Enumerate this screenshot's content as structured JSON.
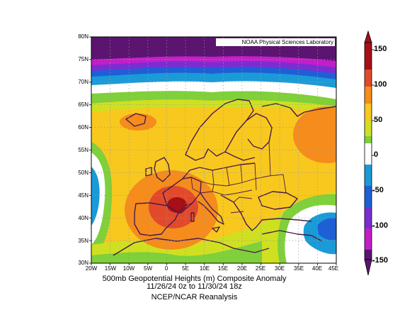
{
  "provider": "NOAA Physical Sciences Laboratory",
  "title_lines": [
    "500mb Geopotential Heights (m)     Composite Anomaly",
    "11/26/24 0z  to 11/30/24 18z"
  ],
  "source": "NCEP/NCAR Reanalysis",
  "map": {
    "lon_range": [
      -20,
      45
    ],
    "lat_range": [
      30,
      80
    ],
    "projection": "equirectangular",
    "grid": true,
    "lat_labels": [
      "80N",
      "75N",
      "70N",
      "65N",
      "60N",
      "55N",
      "50N",
      "45N",
      "40N",
      "35N",
      "30N"
    ],
    "lon_labels": [
      "20W",
      "15W",
      "10W",
      "5W",
      "0",
      "5E",
      "10E",
      "15E",
      "20E",
      "25E",
      "30E",
      "35E",
      "40E",
      "45E"
    ]
  },
  "colorbar": {
    "labels": [
      "150",
      "100",
      "50",
      "0",
      "-50",
      "-100",
      "-150"
    ],
    "levels": [
      {
        "range": "> 150",
        "color": "#a50f15"
      },
      {
        "range": "120 to 150",
        "color": "#e2492b"
      },
      {
        "range": "90 to 120",
        "color": "#f58c1c"
      },
      {
        "range": "60 to 90",
        "color": "#f8c81f"
      },
      {
        "range": "30 to 60",
        "color": "#cfe021"
      },
      {
        "range": "15 to 30",
        "color": "#7fd03a"
      },
      {
        "range": "-15 to 15",
        "color": "#ffffff"
      },
      {
        "range": "-50 to -15",
        "color": "#1a9bd7"
      },
      {
        "range": "-80 to -50",
        "color": "#1f5fd6"
      },
      {
        "range": "-110 to -80",
        "color": "#7a2ed1"
      },
      {
        "range": "-130 to -110",
        "color": "#c21ec8"
      },
      {
        "range": "< -130",
        "color": "#5b1470"
      }
    ]
  },
  "anomaly_features": [
    {
      "name": "positive-anomaly-max-southern-france",
      "lon": 2,
      "lat": 43,
      "value_m": 160
    },
    {
      "name": "positive-anomaly-russia",
      "lon": 43,
      "lat": 57,
      "value_m": 125
    },
    {
      "name": "negative-anomaly-eastern-mediterranean",
      "lon": 40,
      "lat": 38,
      "value_m": -60
    },
    {
      "name": "negative-anomaly-arctic",
      "lon": 10,
      "lat": 78,
      "value_m": -150
    },
    {
      "name": "negative-anomaly-atlantic-west",
      "lon": -20,
      "lat": 45,
      "value_m": -50
    }
  ]
}
